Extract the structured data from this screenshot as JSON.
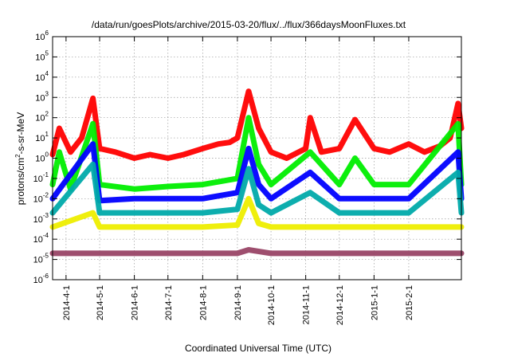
{
  "chart_data": {
    "type": "line",
    "title": "/data/run/goesPlots/archive/2015-03-20/flux/../flux/366daysMoonFluxes.txt",
    "xlabel": "Coordinated Universal Time (UTC)",
    "ylabel_parts": {
      "base": "protons/cm",
      "sup": "2",
      "rest": "-s-sr-MeV"
    },
    "y_scale": "log",
    "ylim": [
      1e-06,
      1000000.0
    ],
    "xlim": [
      "2014-03-20",
      "2015-03-20"
    ],
    "grid": true,
    "legend": "none",
    "y_tick_labels": [
      {
        "value": 1e-06,
        "base": "10",
        "exp": "-6"
      },
      {
        "value": 1e-05,
        "base": "10",
        "exp": "-5"
      },
      {
        "value": 0.0001,
        "base": "10",
        "exp": "-4"
      },
      {
        "value": 0.001,
        "base": "10",
        "exp": "-3"
      },
      {
        "value": 0.01,
        "base": "10",
        "exp": "-2"
      },
      {
        "value": 0.1,
        "base": "10",
        "exp": "-1"
      },
      {
        "value": 1,
        "base": "10",
        "exp": "0"
      },
      {
        "value": 10.0,
        "base": "10",
        "exp": "1"
      },
      {
        "value": 100.0,
        "base": "10",
        "exp": "2"
      },
      {
        "value": 1000.0,
        "base": "10",
        "exp": "3"
      },
      {
        "value": 10000.0,
        "base": "10",
        "exp": "4"
      },
      {
        "value": 100000.0,
        "base": "10",
        "exp": "5"
      },
      {
        "value": 1000000.0,
        "base": "10",
        "exp": "6"
      }
    ],
    "x_tick_labels": [
      {
        "date": "2014-04-01",
        "label": "2014-4-1"
      },
      {
        "date": "2014-05-01",
        "label": "2014-5-1"
      },
      {
        "date": "2014-06-01",
        "label": "2014-6-1"
      },
      {
        "date": "2014-07-01",
        "label": "2014-7-1"
      },
      {
        "date": "2014-08-01",
        "label": "2014-8-1"
      },
      {
        "date": "2014-09-01",
        "label": "2014-9-1"
      },
      {
        "date": "2014-10-01",
        "label": "2014-10-1"
      },
      {
        "date": "2014-11-01",
        "label": "2014-11-1"
      },
      {
        "date": "2014-12-01",
        "label": "2014-12-1"
      },
      {
        "date": "2015-01-01",
        "label": "2015-1-1"
      },
      {
        "date": "2015-02-01",
        "label": "2015-2-1"
      }
    ],
    "series": [
      {
        "color": "#ff0000",
        "values_date_flux": [
          [
            "2014-03-20",
            1.5
          ],
          [
            "2014-03-26",
            30
          ],
          [
            "2014-04-05",
            2
          ],
          [
            "2014-04-15",
            10
          ],
          [
            "2014-04-25",
            900
          ],
          [
            "2014-05-01",
            3
          ],
          [
            "2014-05-15",
            2
          ],
          [
            "2014-06-01",
            1
          ],
          [
            "2014-06-15",
            1.5
          ],
          [
            "2014-07-01",
            1
          ],
          [
            "2014-07-15",
            1.5
          ],
          [
            "2014-08-01",
            3
          ],
          [
            "2014-08-15",
            5
          ],
          [
            "2014-08-25",
            6
          ],
          [
            "2014-09-01",
            10
          ],
          [
            "2014-09-11",
            2000
          ],
          [
            "2014-09-20",
            30
          ],
          [
            "2014-10-01",
            2
          ],
          [
            "2014-10-15",
            1
          ],
          [
            "2014-11-01",
            3
          ],
          [
            "2014-11-05",
            100
          ],
          [
            "2014-11-15",
            2
          ],
          [
            "2014-12-01",
            3
          ],
          [
            "2014-12-15",
            80
          ],
          [
            "2015-01-01",
            3
          ],
          [
            "2015-01-15",
            2
          ],
          [
            "2015-02-01",
            5
          ],
          [
            "2015-02-15",
            2
          ],
          [
            "2015-03-01",
            4
          ],
          [
            "2015-03-10",
            10
          ],
          [
            "2015-03-17",
            500
          ],
          [
            "2015-03-20",
            30
          ]
        ]
      },
      {
        "color": "#00ee00",
        "values_date_flux": [
          [
            "2014-03-20",
            0.05
          ],
          [
            "2014-03-26",
            2
          ],
          [
            "2014-04-05",
            0.03
          ],
          [
            "2014-04-25",
            50
          ],
          [
            "2014-05-01",
            0.05
          ],
          [
            "2014-06-01",
            0.03
          ],
          [
            "2014-07-01",
            0.04
          ],
          [
            "2014-08-01",
            0.05
          ],
          [
            "2014-09-01",
            0.1
          ],
          [
            "2014-09-11",
            100
          ],
          [
            "2014-09-20",
            0.5
          ],
          [
            "2014-10-01",
            0.05
          ],
          [
            "2014-11-05",
            2
          ],
          [
            "2014-12-01",
            0.05
          ],
          [
            "2014-12-15",
            1
          ],
          [
            "2015-01-01",
            0.05
          ],
          [
            "2015-02-01",
            0.05
          ],
          [
            "2015-03-17",
            50
          ],
          [
            "2015-03-20",
            0.05
          ]
        ]
      },
      {
        "color": "#0000ff",
        "values_date_flux": [
          [
            "2014-03-20",
            0.01
          ],
          [
            "2014-04-25",
            5
          ],
          [
            "2014-05-01",
            0.008
          ],
          [
            "2014-06-01",
            0.01
          ],
          [
            "2014-07-01",
            0.01
          ],
          [
            "2014-08-01",
            0.01
          ],
          [
            "2014-09-01",
            0.02
          ],
          [
            "2014-09-11",
            3
          ],
          [
            "2014-09-20",
            0.05
          ],
          [
            "2014-10-01",
            0.01
          ],
          [
            "2014-11-05",
            0.2
          ],
          [
            "2014-12-01",
            0.01
          ],
          [
            "2015-01-01",
            0.01
          ],
          [
            "2015-02-01",
            0.01
          ],
          [
            "2015-03-17",
            2
          ],
          [
            "2015-03-20",
            0.01
          ]
        ]
      },
      {
        "color": "#00aaaa",
        "values_date_flux": [
          [
            "2014-03-20",
            0.002
          ],
          [
            "2014-04-25",
            0.5
          ],
          [
            "2014-05-01",
            0.002
          ],
          [
            "2014-06-01",
            0.002
          ],
          [
            "2014-07-01",
            0.002
          ],
          [
            "2014-08-01",
            0.002
          ],
          [
            "2014-09-01",
            0.003
          ],
          [
            "2014-09-11",
            0.3
          ],
          [
            "2014-09-20",
            0.005
          ],
          [
            "2014-10-01",
            0.002
          ],
          [
            "2014-11-05",
            0.02
          ],
          [
            "2014-12-01",
            0.002
          ],
          [
            "2015-01-01",
            0.002
          ],
          [
            "2015-02-01",
            0.002
          ],
          [
            "2015-03-17",
            0.2
          ],
          [
            "2015-03-20",
            0.002
          ]
        ]
      },
      {
        "color": "#eeee00",
        "values_date_flux": [
          [
            "2014-03-20",
            0.0004
          ],
          [
            "2014-04-25",
            0.002
          ],
          [
            "2014-05-01",
            0.0004
          ],
          [
            "2014-06-01",
            0.0004
          ],
          [
            "2014-07-01",
            0.0004
          ],
          [
            "2014-08-01",
            0.0004
          ],
          [
            "2014-09-01",
            0.0005
          ],
          [
            "2014-09-11",
            0.01
          ],
          [
            "2014-09-20",
            0.0006
          ],
          [
            "2014-10-01",
            0.0004
          ],
          [
            "2014-11-01",
            0.0004
          ],
          [
            "2014-12-01",
            0.0004
          ],
          [
            "2015-01-01",
            0.0004
          ],
          [
            "2015-02-01",
            0.0004
          ],
          [
            "2015-03-20",
            0.0004
          ]
        ]
      },
      {
        "color": "#994466",
        "values_date_flux": [
          [
            "2014-03-20",
            2e-05
          ],
          [
            "2014-04-15",
            2e-05
          ],
          [
            "2014-05-01",
            2e-05
          ],
          [
            "2014-06-01",
            2e-05
          ],
          [
            "2014-07-01",
            2e-05
          ],
          [
            "2014-08-01",
            2e-05
          ],
          [
            "2014-09-01",
            2e-05
          ],
          [
            "2014-09-11",
            3e-05
          ],
          [
            "2014-10-01",
            2e-05
          ],
          [
            "2014-11-01",
            2e-05
          ],
          [
            "2014-12-01",
            2e-05
          ],
          [
            "2015-01-01",
            2e-05
          ],
          [
            "2015-02-01",
            2e-05
          ],
          [
            "2015-03-20",
            2e-05
          ]
        ]
      }
    ]
  }
}
